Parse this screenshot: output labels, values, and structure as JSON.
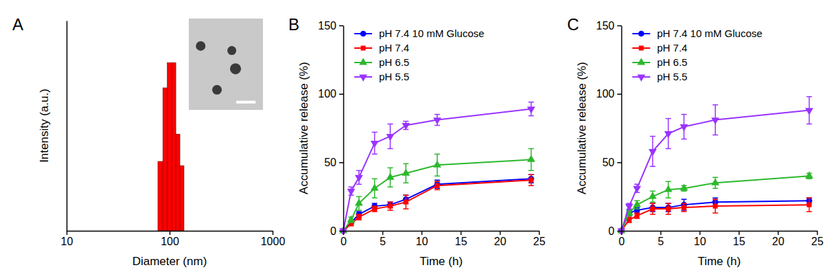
{
  "chart_data": [
    {
      "type": "histogram",
      "title": "A",
      "x_label": "Diameter (nm)",
      "y_label": "Intensity (a.u.)",
      "bins": [
        77,
        86,
        95,
        105,
        115,
        126,
        138
      ],
      "values": [
        33,
        68,
        80,
        80,
        46,
        31
      ],
      "color": "#FF0000",
      "log": "x",
      "xlim": [
        10,
        1000
      ],
      "xticks": [
        10,
        100,
        1000
      ],
      "ylim": [
        0,
        100
      ],
      "yticks": [],
      "tick_labels": "x",
      "grid": false
    },
    {
      "type": "line",
      "title": "B",
      "x_label": "Time (h)",
      "y_label": "Accumulative release (%)",
      "x": [
        0,
        1,
        2,
        4,
        6,
        8,
        12,
        24
      ],
      "xlim": [
        0,
        25
      ],
      "xticks": [
        0,
        5,
        10,
        15,
        20,
        25
      ],
      "ylim": [
        0,
        150
      ],
      "yticks": [
        0,
        50,
        100,
        150
      ],
      "grid": false,
      "legend": "upper left",
      "series": [
        {
          "name": "pH 7.4 10 mM Glucose",
          "color": "#0000FF",
          "marker": "circle",
          "values": [
            0,
            6,
            12,
            18,
            19,
            23,
            34,
            38
          ],
          "errors": [
            0,
            1,
            2,
            2,
            2,
            3,
            3,
            3
          ]
        },
        {
          "name": "pH 7.4",
          "color": "#FF0000",
          "marker": "square",
          "values": [
            0,
            5,
            10,
            16,
            18,
            21,
            33,
            37
          ],
          "errors": [
            0,
            1,
            2,
            2,
            3,
            5,
            3,
            4
          ]
        },
        {
          "name": "pH 6.5",
          "color": "#2DB82D",
          "marker": "triangle",
          "values": [
            0,
            8,
            20,
            31,
            39,
            42,
            48,
            52
          ],
          "errors": [
            0,
            2,
            5,
            7,
            7,
            7,
            8,
            8
          ]
        },
        {
          "name": "pH 5.5",
          "color": "#9933FF",
          "marker": "triangle-down",
          "values": [
            0,
            29,
            39,
            64,
            69,
            77,
            81,
            89
          ],
          "errors": [
            0,
            3,
            5,
            8,
            9,
            3,
            4,
            5
          ]
        }
      ]
    },
    {
      "type": "line",
      "title": "C",
      "x_label": "Time (h)",
      "y_label": "Accumulative release (%)",
      "x": [
        0,
        1,
        2,
        4,
        6,
        8,
        12,
        24
      ],
      "xlim": [
        0,
        25
      ],
      "xticks": [
        0,
        5,
        10,
        15,
        20,
        25
      ],
      "ylim": [
        0,
        150
      ],
      "yticks": [
        0,
        50,
        100,
        150
      ],
      "grid": false,
      "legend": "upper left",
      "series": [
        {
          "name": "pH 7.4 10 mM Glucose",
          "color": "#0000FF",
          "marker": "circle",
          "values": [
            0,
            13,
            15,
            17,
            17,
            19,
            21,
            22
          ],
          "errors": [
            0,
            2,
            2,
            3,
            3,
            4,
            3,
            2
          ]
        },
        {
          "name": "pH 7.4",
          "color": "#FF0000",
          "marker": "square",
          "values": [
            0,
            8,
            11,
            16,
            16,
            17,
            18,
            19
          ],
          "errors": [
            0,
            2,
            2,
            4,
            4,
            3,
            5,
            5
          ]
        },
        {
          "name": "pH 6.5",
          "color": "#2DB82D",
          "marker": "triangle",
          "values": [
            0,
            13,
            19,
            25,
            30,
            31,
            35,
            40
          ],
          "errors": [
            0,
            2,
            3,
            4,
            6,
            2,
            4,
            2
          ]
        },
        {
          "name": "pH 5.5",
          "color": "#9933FF",
          "marker": "triangle-down",
          "values": [
            0,
            18,
            31,
            58,
            71,
            76,
            81,
            88
          ],
          "errors": [
            0,
            2,
            3,
            11,
            11,
            9,
            11,
            10
          ]
        }
      ]
    }
  ]
}
